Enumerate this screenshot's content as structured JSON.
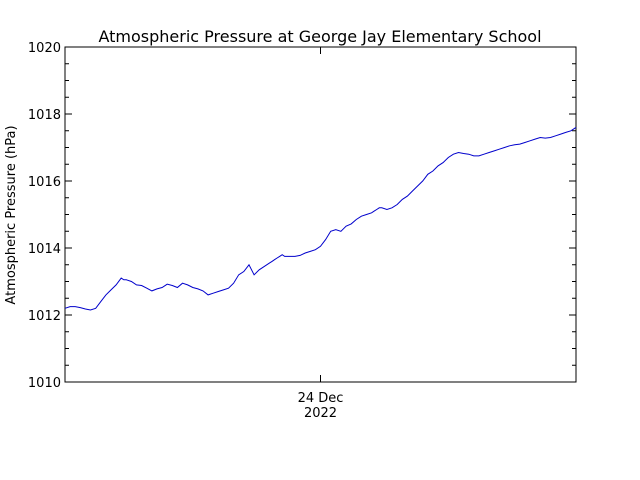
{
  "chart_data": {
    "type": "line",
    "title": "Atmospheric Pressure at George Jay Elementary School",
    "xlabel": "",
    "ylabel": "Atmospheric Pressure (hPa)",
    "ylim": [
      1010,
      1020
    ],
    "y_ticks": [
      "1010",
      "1012",
      "1014",
      "1016",
      "1018",
      "1020"
    ],
    "x_tick_labels": [
      {
        "position": 0.5,
        "line1": "24 Dec",
        "line2": "2022"
      }
    ],
    "grid": false,
    "legend": "none",
    "series": [
      {
        "color": "#0000cc",
        "x": [
          0.0,
          0.01,
          0.02,
          0.03,
          0.04,
          0.05,
          0.06,
          0.07,
          0.08,
          0.09,
          0.1,
          0.11,
          0.115,
          0.12,
          0.13,
          0.14,
          0.15,
          0.16,
          0.17,
          0.18,
          0.19,
          0.2,
          0.21,
          0.22,
          0.23,
          0.24,
          0.25,
          0.26,
          0.27,
          0.28,
          0.29,
          0.3,
          0.31,
          0.32,
          0.33,
          0.34,
          0.35,
          0.36,
          0.37,
          0.38,
          0.39,
          0.4,
          0.405,
          0.41,
          0.415,
          0.42,
          0.425,
          0.43,
          0.44,
          0.45,
          0.46,
          0.47,
          0.48,
          0.49,
          0.5,
          0.51,
          0.52,
          0.53,
          0.54,
          0.55,
          0.56,
          0.57,
          0.58,
          0.59,
          0.6,
          0.605,
          0.61,
          0.615,
          0.62,
          0.63,
          0.64,
          0.65,
          0.66,
          0.67,
          0.68,
          0.69,
          0.7,
          0.71,
          0.72,
          0.73,
          0.74,
          0.75,
          0.76,
          0.77,
          0.78,
          0.79,
          0.8,
          0.81,
          0.82,
          0.83,
          0.84,
          0.85,
          0.86,
          0.87,
          0.88,
          0.89,
          0.9,
          0.91,
          0.92,
          0.93,
          0.94,
          0.95,
          0.96,
          0.97,
          0.98,
          0.99,
          1.0
        ],
        "values": [
          1012.2,
          1012.25,
          1012.25,
          1012.22,
          1012.18,
          1012.15,
          1012.2,
          1012.4,
          1012.6,
          1012.75,
          1012.9,
          1013.1,
          1013.05,
          1013.05,
          1013.0,
          1012.9,
          1012.88,
          1012.8,
          1012.72,
          1012.78,
          1012.82,
          1012.92,
          1012.88,
          1012.82,
          1012.95,
          1012.9,
          1012.82,
          1012.78,
          1012.72,
          1012.6,
          1012.65,
          1012.7,
          1012.75,
          1012.8,
          1012.95,
          1013.2,
          1013.3,
          1013.5,
          1013.2,
          1013.35,
          1013.45,
          1013.55,
          1013.6,
          1013.65,
          1013.7,
          1013.75,
          1013.8,
          1013.75,
          1013.75,
          1013.75,
          1013.78,
          1013.85,
          1013.9,
          1013.95,
          1014.05,
          1014.25,
          1014.5,
          1014.55,
          1014.5,
          1014.65,
          1014.72,
          1014.85,
          1014.95,
          1015.0,
          1015.05,
          1015.1,
          1015.15,
          1015.2,
          1015.2,
          1015.15,
          1015.2,
          1015.3,
          1015.45,
          1015.55,
          1015.7,
          1015.85,
          1016.0,
          1016.2,
          1016.3,
          1016.45,
          1016.55,
          1016.7,
          1016.8,
          1016.85,
          1016.82,
          1016.8,
          1016.75,
          1016.75,
          1016.8,
          1016.85,
          1016.9,
          1016.95,
          1017.0,
          1017.05,
          1017.08,
          1017.1,
          1017.15,
          1017.2,
          1017.25,
          1017.3,
          1017.28,
          1017.3,
          1017.35,
          1017.4,
          1017.45,
          1017.5,
          1017.6
        ]
      }
    ]
  }
}
